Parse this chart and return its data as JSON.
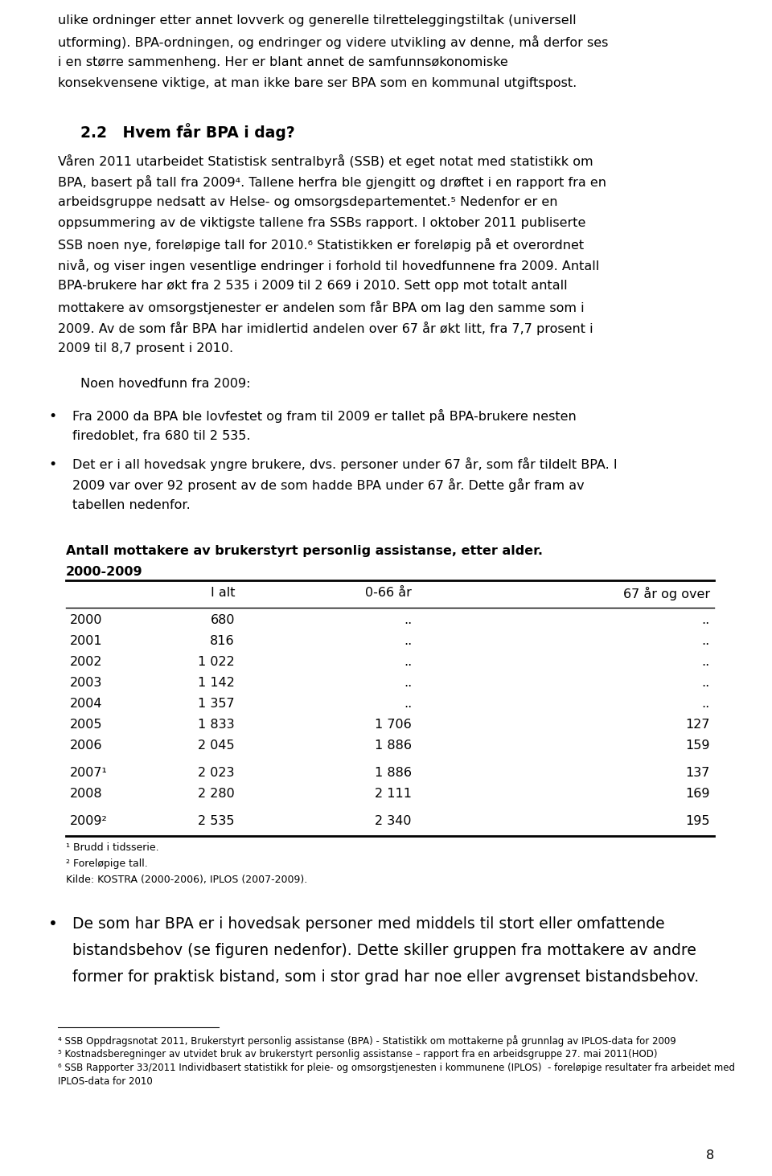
{
  "bg_color": "#ffffff",
  "text_color": "#000000",
  "paragraph1_lines": [
    "ulike ordninger etter annet lovverk og generelle tilretteleggingstiltak (universell",
    "utforming). BPA-ordningen, og endringer og videre utvikling av denne, må derfor ses",
    "i en større sammenheng. Her er blant annet de samfunnsøkonomiske",
    "konsekvensene viktige, at man ikke bare ser BPA som en kommunal utgiftspost."
  ],
  "section_heading": "2.2   Hvem får BPA i dag?",
  "paragraph2_lines": [
    "Våren 2011 utarbeidet Statistisk sentralbyrå (SSB) et eget notat med statistikk om",
    "BPA, basert på tall fra 2009⁴. Tallene herfra ble gjengitt og drøftet i en rapport fra en",
    "arbeidsgruppe nedsatt av Helse- og omsorgsdepartementet.⁵ Nedenfor er en",
    "oppsummering av de viktigste tallene fra SSBs rapport. I oktober 2011 publiserte",
    "SSB noen nye, foreløpige tall for 2010.⁶ Statistikken er foreløpig på et overordnet",
    "nivå, og viser ingen vesentlige endringer i forhold til hovedfunnene fra 2009. Antall",
    "BPA-brukere har økt fra 2 535 i 2009 til 2 669 i 2010. Sett opp mot totalt antall",
    "mottakere av omsorgstjenester er andelen som får BPA om lag den samme som i",
    "2009. Av de som får BPA har imidlertid andelen over 67 år økt litt, fra 7,7 prosent i",
    "2009 til 8,7 prosent i 2010."
  ],
  "indent_text": "Noen hovedfunn fra 2009:",
  "bullet1_lines": [
    "Fra 2000 da BPA ble lovfestet og fram til 2009 er tallet på BPA-brukere nesten",
    "firedoblet, fra 680 til 2 535."
  ],
  "bullet2_lines": [
    "Det er i all hovedsak yngre brukere, dvs. personer under 67 år, som får tildelt BPA. I",
    "2009 var over 92 prosent av de som hadde BPA under 67 år. Dette går fram av",
    "tabellen nedenfor."
  ],
  "table_title1": "Antall mottakere av brukerstyrt personlig assistanse, etter alder.",
  "table_title2": "2000-2009",
  "table_headers": [
    "",
    "I alt",
    "0-66 år",
    "67 år og over"
  ],
  "table_rows": [
    [
      "2000",
      "680",
      "..",
      ".."
    ],
    [
      "2001",
      "816",
      "..",
      ".."
    ],
    [
      "2002",
      "1 022",
      "..",
      ".."
    ],
    [
      "2003",
      "1 142",
      "..",
      ".."
    ],
    [
      "2004",
      "1 357",
      "..",
      ".."
    ],
    [
      "2005",
      "1 833",
      "1 706",
      "127"
    ],
    [
      "2006",
      "2 045",
      "1 886",
      "159"
    ],
    [
      "2007¹",
      "2 023",
      "1 886",
      "137"
    ],
    [
      "2008",
      "2 280",
      "2 111",
      "169"
    ],
    [
      "2009²",
      "2 535",
      "2 340",
      "195"
    ]
  ],
  "footnote1": "¹ Brudd i tidsserie.",
  "footnote2": "² Foreløpige tall.",
  "footnote3": "Kilde: KOSTRA (2000-2006), IPLOS (2007-2009).",
  "bullet3_lines": [
    "De som har BPA er i hovedsak personer med middels til stort eller omfattende",
    "bistandsbehov (se figuren nedenfor). Dette skiller gruppen fra mottakere av andre",
    "former for praktisk bistand, som i stor grad har noe eller avgrenset bistandsbehov."
  ],
  "footer1": "⁴ SSB Oppdragsnotat 2011, Brukerstyrt personlig assistanse (BPA) - Statistikk om mottakerne på grunnlag av IPLOS-data for 2009",
  "footer2": "⁵ Kostnadsberegninger av utvidet bruk av brukerstyrt personlig assistanse – rapport fra en arbeidsgruppe 27. mai 2011(HOD)",
  "footer3a": "⁶ SSB Rapporter 33/2011 Individbasert statistikk for pleie- og omsorgstjenesten i kommunene (IPLOS)  - foreløpige resultater fra arbeidet med",
  "footer3b": "IPLOS-data for 2010",
  "page_number": "8"
}
